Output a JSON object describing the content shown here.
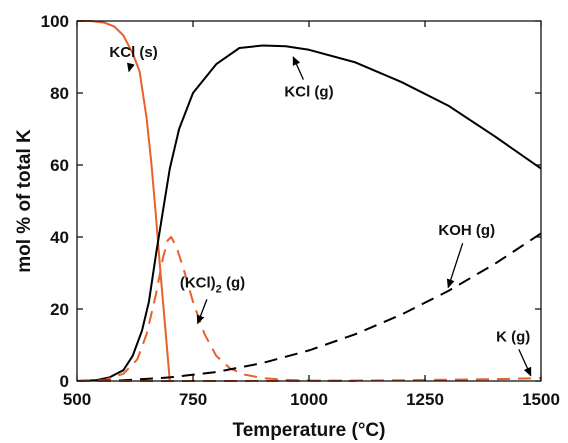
{
  "chart_data": {
    "type": "line",
    "title": "",
    "xlabel": "Temperature (°C)",
    "ylabel": "mol % of total K",
    "xlim": [
      500,
      1500
    ],
    "ylim": [
      0,
      100
    ],
    "xticks": [
      500,
      750,
      1000,
      1250,
      1500
    ],
    "yticks": [
      0,
      20,
      40,
      60,
      80,
      100
    ],
    "grid": false,
    "legend": "none",
    "series": [
      {
        "name": "KCl (s)",
        "color": "#E8602C",
        "dash": "solid",
        "x": [
          500,
          530,
          560,
          580,
          600,
          620,
          635,
          650,
          660,
          670,
          680,
          690,
          700
        ],
        "y": [
          100,
          100,
          99.5,
          98.5,
          96,
          91,
          86,
          73,
          61,
          46,
          30,
          15,
          0
        ]
      },
      {
        "name": "KCl (g)",
        "color": "#000000",
        "dash": "solid",
        "x": [
          500,
          540,
          570,
          600,
          620,
          640,
          655,
          670,
          685,
          700,
          720,
          750,
          800,
          850,
          900,
          950,
          1000,
          1100,
          1200,
          1300,
          1400,
          1500
        ],
        "y": [
          0,
          0.2,
          1,
          3,
          7,
          14,
          22,
          35,
          47,
          59,
          70,
          80,
          88,
          92.5,
          93.2,
          93,
          92,
          88.5,
          83,
          76.5,
          68,
          59
        ]
      },
      {
        "name": "(KCl)2 (g)",
        "color": "#E8602C",
        "dash": "dashed",
        "x": [
          500,
          560,
          600,
          630,
          650,
          670,
          685,
          695,
          703,
          715,
          730,
          750,
          775,
          800,
          830,
          860,
          900,
          950,
          1000,
          1100
        ],
        "y": [
          0,
          0.3,
          2,
          6,
          13,
          24,
          34,
          39,
          40,
          37,
          31,
          22,
          13,
          7,
          3.5,
          1.8,
          0.8,
          0.3,
          0.1,
          0
        ]
      },
      {
        "name": "KOH (g)",
        "color": "#000000",
        "dash": "dashed",
        "x": [
          500,
          600,
          700,
          800,
          900,
          1000,
          1100,
          1200,
          1300,
          1400,
          1500
        ],
        "y": [
          0,
          0.2,
          1,
          2.5,
          5,
          8.5,
          13,
          18.5,
          25,
          32.5,
          41
        ]
      },
      {
        "name": "K (g)",
        "color": "#E8602C",
        "dash": "dashed",
        "x": [
          500,
          800,
          1000,
          1200,
          1400,
          1500
        ],
        "y": [
          0,
          0,
          0.05,
          0.2,
          0.5,
          0.8
        ]
      }
    ],
    "annotations": [
      {
        "text": "KCl (s)",
        "textpos": [
          622,
          90
        ],
        "arrow_to": [
          612,
          86
        ]
      },
      {
        "text": "KCl (g)",
        "textpos": [
          1000,
          79
        ],
        "arrow_to": [
          966,
          90
        ]
      },
      {
        "text": "(KCl)",
        "sub": "2",
        "tail": " (g)",
        "textpos": [
          792,
          26
        ],
        "arrow_to": [
          760,
          16
        ]
      },
      {
        "text": "KOH (g)",
        "textpos": [
          1340,
          40.5
        ],
        "arrow_to": [
          1300,
          26
        ]
      },
      {
        "text": "K (g)",
        "textpos": [
          1440,
          11
        ],
        "arrow_to": [
          1478,
          1.5
        ]
      }
    ]
  }
}
